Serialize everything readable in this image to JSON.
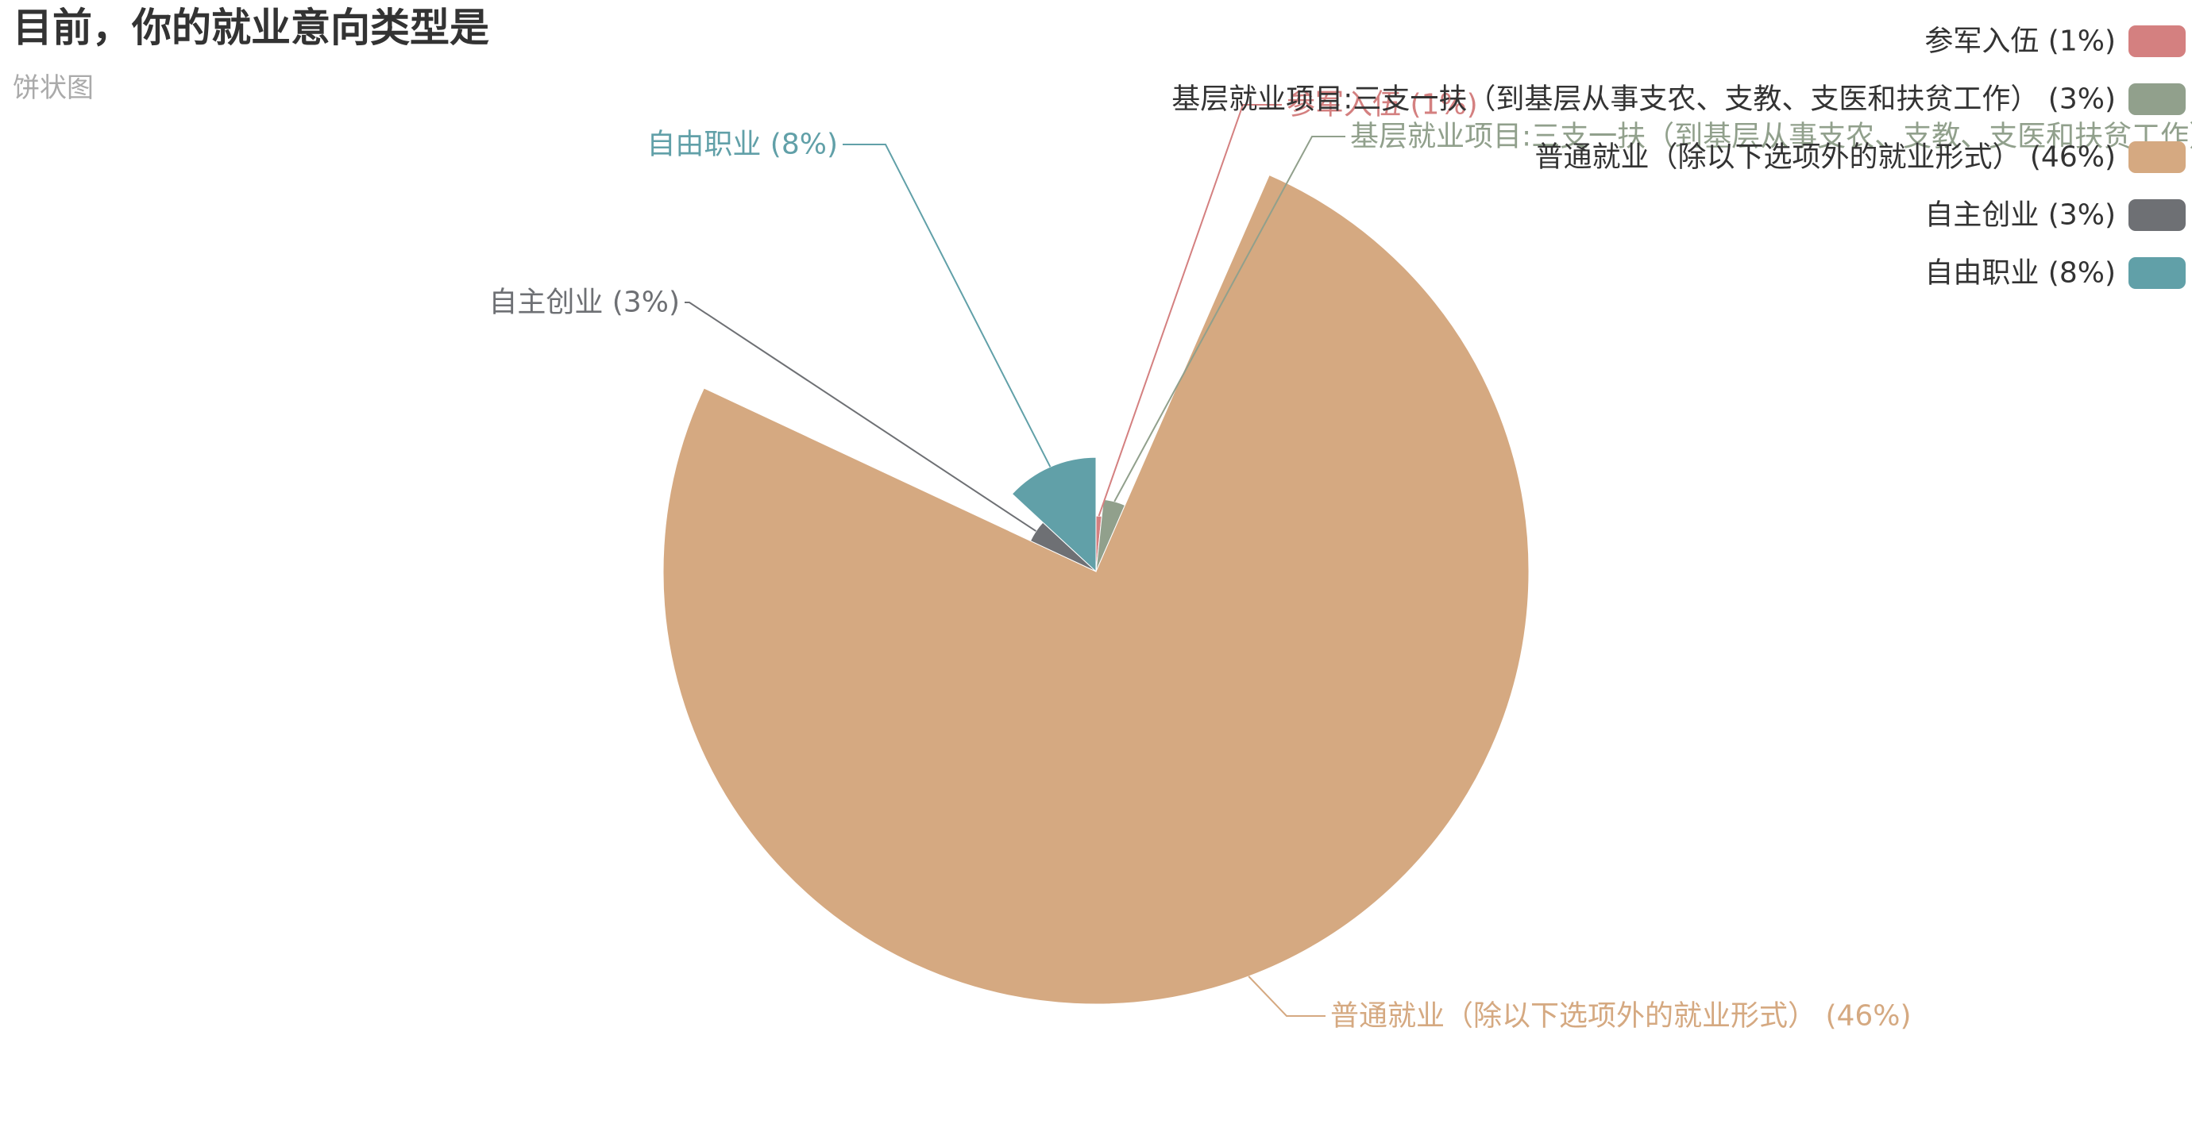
{
  "chart_data": {
    "type": "pie",
    "title": "目前，你的就业意向类型是",
    "subtitle": "饼状图",
    "rose_type": "radius",
    "legend_position": "top-right",
    "slices": [
      {
        "name": "参军入伍",
        "percent_label": "1%",
        "value": 1,
        "color": "#d48080"
      },
      {
        "name": "基层就业项目:三支一扶（到基层从事支农、支教、支医和扶贫工作）",
        "percent_label": "3%",
        "value": 3,
        "color": "#91a08c"
      },
      {
        "name": "普通就业（除以下选项外的就业形式）",
        "percent_label": "46%",
        "value": 46,
        "color": "#d5a981"
      },
      {
        "name": "自主创业",
        "percent_label": "3%",
        "value": 3,
        "color": "#6e7074"
      },
      {
        "name": "自由职业",
        "percent_label": "8%",
        "value": 8,
        "color": "#61a0a8"
      }
    ]
  }
}
